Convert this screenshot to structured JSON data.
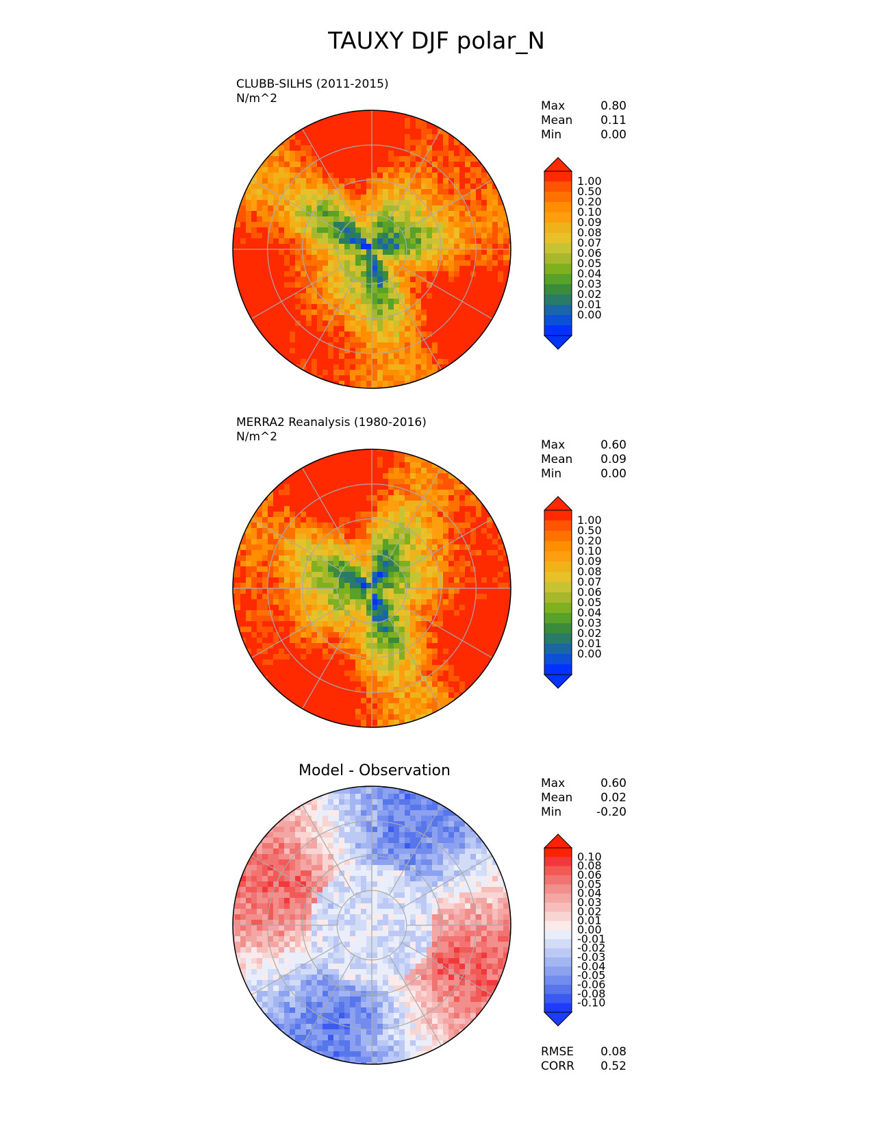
{
  "title": "TAUXY DJF polar_N",
  "panels": [
    {
      "id": "model",
      "header": [
        "CLUBB-SILHS (2011-2015)",
        "N/m^2"
      ],
      "stats": [
        {
          "label": "Max",
          "value": "0.80"
        },
        {
          "label": "Mean",
          "value": "0.11"
        },
        {
          "label": "Min",
          "value": "0.00"
        }
      ],
      "colorbar": {
        "labels": [
          "1.00",
          "0.50",
          "0.20",
          "0.10",
          "0.09",
          "0.08",
          "0.07",
          "0.06",
          "0.05",
          "0.04",
          "0.03",
          "0.02",
          "0.01",
          "0.00"
        ],
        "colors": [
          "#ff2a00",
          "#ff5500",
          "#ff7200",
          "#ff8f00",
          "#ff9e0f",
          "#f0b21a",
          "#e8c12a",
          "#c7c334",
          "#a8b82c",
          "#7fb01f",
          "#58a229",
          "#3a8b3c",
          "#2a7a6a",
          "#1a66a8",
          "#0c50d8",
          "#0033ff"
        ]
      },
      "chart_data": {
        "type": "heatmap",
        "projection": "north polar stereographic",
        "variable": "TAUXY",
        "season": "DJF",
        "units": "N/m^2",
        "max": 0.8,
        "mean": 0.11,
        "min": 0.0
      }
    },
    {
      "id": "obs",
      "header": [
        "MERRA2 Reanalysis (1980-2016)",
        "N/m^2"
      ],
      "stats": [
        {
          "label": "Max",
          "value": "0.60"
        },
        {
          "label": "Mean",
          "value": "0.09"
        },
        {
          "label": "Min",
          "value": "0.00"
        }
      ],
      "colorbar": {
        "labels": [
          "1.00",
          "0.50",
          "0.20",
          "0.10",
          "0.09",
          "0.08",
          "0.07",
          "0.06",
          "0.05",
          "0.04",
          "0.03",
          "0.02",
          "0.01",
          "0.00"
        ],
        "colors": [
          "#ff2a00",
          "#ff5500",
          "#ff7200",
          "#ff8f00",
          "#ff9e0f",
          "#f0b21a",
          "#e8c12a",
          "#c7c334",
          "#a8b82c",
          "#7fb01f",
          "#58a229",
          "#3a8b3c",
          "#2a7a6a",
          "#1a66a8",
          "#0c50d8",
          "#0033ff"
        ]
      },
      "chart_data": {
        "type": "heatmap",
        "projection": "north polar stereographic",
        "variable": "TAUXY",
        "season": "DJF",
        "units": "N/m^2",
        "max": 0.6,
        "mean": 0.09,
        "min": 0.0
      }
    },
    {
      "id": "diff",
      "header": [
        "Model - Observation"
      ],
      "stats": [
        {
          "label": "Max",
          "value": "0.60"
        },
        {
          "label": "Mean",
          "value": "0.02"
        },
        {
          "label": "Min",
          "value": "-0.20"
        }
      ],
      "extra_stats": [
        {
          "label": "RMSE",
          "value": "0.08"
        },
        {
          "label": "CORR",
          "value": "0.52"
        }
      ],
      "colorbar": {
        "labels": [
          "0.10",
          "0.08",
          "0.06",
          "0.05",
          "0.04",
          "0.03",
          "0.02",
          "0.01",
          "0.00",
          "-0.01",
          "-0.02",
          "-0.03",
          "-0.04",
          "-0.05",
          "-0.06",
          "-0.08",
          "-0.10"
        ],
        "colors": [
          "#ff2200",
          "#f2383a",
          "#f25a58",
          "#f27472",
          "#f28e8c",
          "#f4a6a4",
          "#f6bdbb",
          "#f8d4d2",
          "#faeaea",
          "#eaeefa",
          "#d2dcf6",
          "#bcc9f4",
          "#a4b6f2",
          "#8ca2f0",
          "#728cee",
          "#5876ec",
          "#3a5af0",
          "#1e3cff"
        ]
      },
      "chart_data": {
        "type": "heatmap",
        "projection": "north polar stereographic",
        "variable": "TAUXY difference",
        "units": "N/m^2",
        "max": 0.6,
        "mean": 0.02,
        "min": -0.2,
        "rmse": 0.08,
        "corr": 0.52
      }
    }
  ]
}
